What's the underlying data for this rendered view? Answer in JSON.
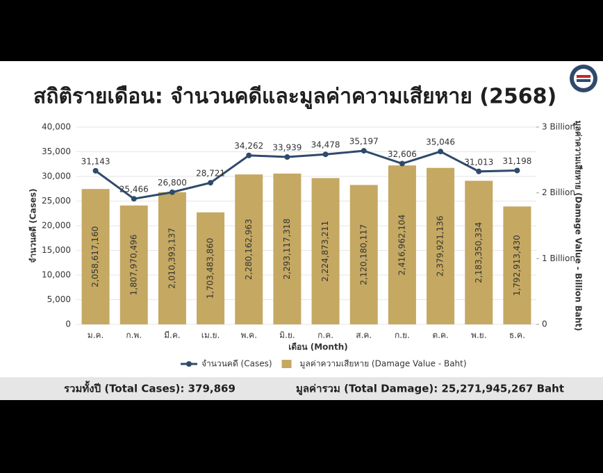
{
  "chart_data": {
    "type": "bar",
    "title": "สถิติรายเดือน: จำนวนคดีและมูลค่าความเสียหาย (2568)",
    "x_label": "เดือน (Month)",
    "y_label": "จำนวนคดี (Cases)",
    "y2_label": "มูลค่าความเสียหาย (Damage Value - Billion Baht)",
    "categories": [
      "ม.ค.",
      "ก.พ.",
      "มี.ค.",
      "เม.ย.",
      "พ.ค.",
      "มิ.ย.",
      "ก.ค.",
      "ส.ค.",
      "ก.ย.",
      "ต.ค.",
      "พ.ย.",
      "ธ.ค."
    ],
    "series": [
      {
        "name": "จำนวนคดี (Cases)",
        "type": "line",
        "color": "#2f4a6a",
        "values": [
          31143,
          25466,
          26800,
          28721,
          34262,
          33939,
          34478,
          35197,
          32606,
          35046,
          31013,
          31198
        ],
        "value_labels": [
          "31,143",
          "25,466",
          "26,800",
          "28,721",
          "34,262",
          "33,939",
          "34,478",
          "35,197",
          "32,606",
          "35,046",
          "31,013",
          "31,198"
        ]
      },
      {
        "name": "มูลค่าความเสียหาย (Damage Value - Baht)",
        "type": "bar",
        "axis": "y2",
        "color": "#c5a862",
        "values": [
          2058617160,
          1807970496,
          2010393137,
          1703483860,
          2280162963,
          2293117318,
          2224873211,
          2120180117,
          2416962104,
          2379921136,
          2183350334,
          1792913430
        ],
        "value_labels": [
          "2,058,617,160",
          "1,807,970,496",
          "2,010,393,137",
          "1,703,483,860",
          "2,280,162,963",
          "2,293,117,318",
          "2,224,873,211",
          "2,120,180,117",
          "2,416,962,104",
          "2,379,921,136",
          "2,183,350,334",
          "1,792,913,430"
        ]
      }
    ],
    "ylim": [
      0,
      40000
    ],
    "yticks": [
      0,
      {
        "value": 5000,
        "label": "5,000"
      },
      {
        "value": 10000,
        "label": "10,000"
      },
      {
        "value": 15000,
        "label": "15,000"
      },
      {
        "value": 20000,
        "label": "20,000"
      },
      {
        "value": 25000,
        "label": "25,000"
      },
      {
        "value": 30000,
        "label": "30,000"
      },
      {
        "value": 35000,
        "label": "35,000"
      },
      {
        "value": 40000,
        "label": "40,000"
      }
    ],
    "y2lim": [
      0,
      3000000000
    ],
    "y2ticks": [
      0,
      {
        "value": 1000000000,
        "label": "1 Billion"
      },
      {
        "value": 2000000000,
        "label": "2 Billion"
      },
      {
        "value": 3000000000,
        "label": "3 Billion"
      }
    ],
    "grid": true,
    "legend": "bottom",
    "annotations": [
      "รวมทั้งปี (Total Cases): 379,869",
      "มูลค่ารวม (Total Damage): 25,271,945,267 Baht"
    ]
  }
}
